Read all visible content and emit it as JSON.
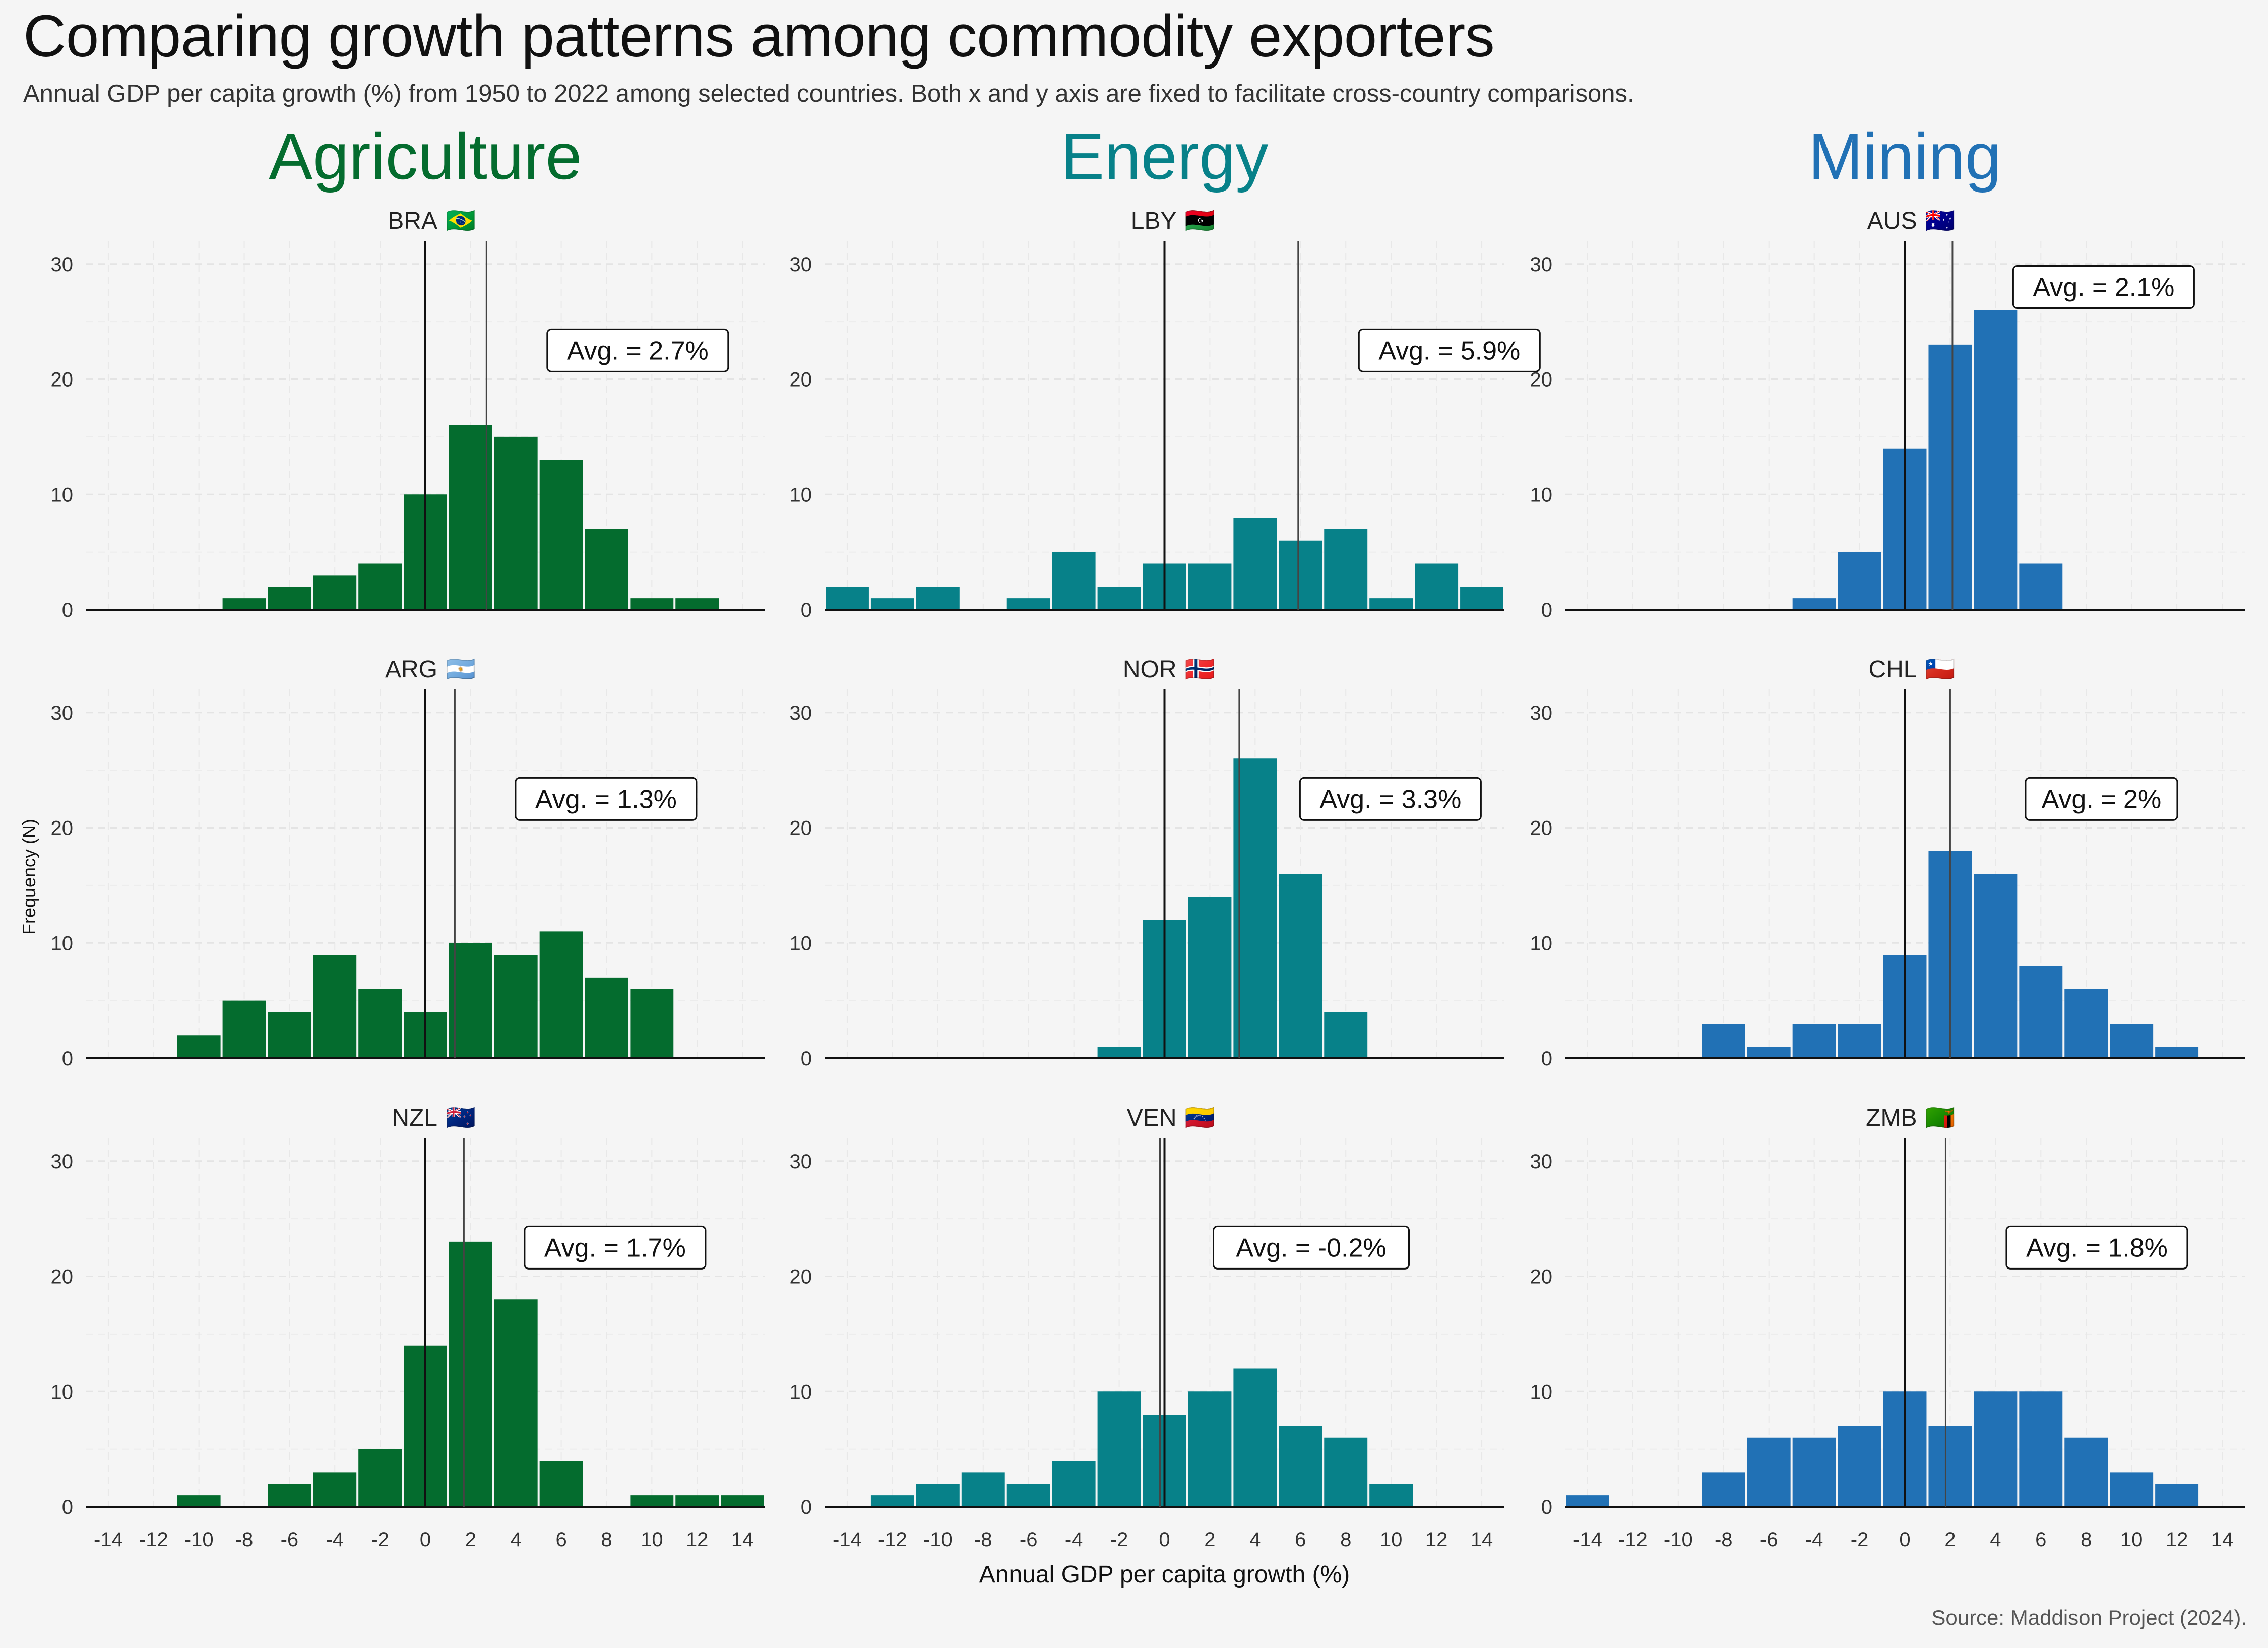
{
  "title": "Comparing growth patterns among commodity exporters",
  "subtitle": "Annual GDP per capita growth (%) from 1950 to 2022 among selected countries. Both x and y axis are fixed to facilitate cross-country comparisons.",
  "source": "Source: Maddison Project (2024).",
  "chart_data": {
    "type": "bar",
    "xlabel": "Annual GDP per capita growth (%)",
    "ylabel": "Frequency (N)",
    "xlim": [
      -15,
      15
    ],
    "ylim": [
      0,
      32
    ],
    "xticks": [
      "-14",
      "-12",
      "-10",
      "-8",
      "-6",
      "-4",
      "-2",
      "0",
      "2",
      "4",
      "6",
      "8",
      "10",
      "12",
      "14"
    ],
    "yticks": [
      "0",
      "10",
      "20",
      "30"
    ],
    "bin_centers": [
      -14,
      -12,
      -10,
      -8,
      -6,
      -4,
      -2,
      0,
      2,
      4,
      6,
      8,
      10,
      12,
      14
    ],
    "categories": [
      {
        "name": "Agriculture",
        "color": "#046c2e"
      },
      {
        "name": "Energy",
        "color": "#078189"
      },
      {
        "name": "Mining",
        "color": "#2171b5"
      }
    ],
    "panels": [
      {
        "country": "BRA",
        "flag": "🇧🇷",
        "category": "Agriculture",
        "avg": 2.7,
        "avg_label": "Avg. = 2.7%",
        "values": [
          0,
          0,
          0,
          1,
          2,
          3,
          4,
          10,
          16,
          15,
          13,
          7,
          1,
          1,
          0
        ]
      },
      {
        "country": "LBY",
        "flag": "🇱🇾",
        "category": "Energy",
        "avg": 5.9,
        "avg_label": "Avg. = 5.9%",
        "values": [
          2,
          1,
          2,
          0,
          1,
          5,
          2,
          4,
          4,
          8,
          6,
          7,
          1,
          4,
          2
        ]
      },
      {
        "country": "AUS",
        "flag": "🇦🇺",
        "category": "Mining",
        "avg": 2.1,
        "avg_label": "Avg. = 2.1%",
        "values": [
          0,
          0,
          0,
          0,
          0,
          1,
          5,
          14,
          23,
          26,
          4,
          0,
          0,
          0,
          0
        ]
      },
      {
        "country": "ARG",
        "flag": "🇦🇷",
        "category": "Agriculture",
        "avg": 1.3,
        "avg_label": "Avg. = 1.3%",
        "values": [
          0,
          0,
          2,
          5,
          4,
          9,
          6,
          4,
          10,
          9,
          11,
          7,
          6,
          0,
          0
        ]
      },
      {
        "country": "NOR",
        "flag": "🇳🇴",
        "category": "Energy",
        "avg": 3.3,
        "avg_label": "Avg. = 3.3%",
        "values": [
          0,
          0,
          0,
          0,
          0,
          0,
          1,
          12,
          14,
          26,
          16,
          4,
          0,
          0,
          0
        ]
      },
      {
        "country": "CHL",
        "flag": "🇨🇱",
        "category": "Mining",
        "avg": 2.0,
        "avg_label": "Avg. = 2%",
        "values": [
          0,
          0,
          0,
          3,
          1,
          3,
          3,
          9,
          18,
          16,
          8,
          6,
          3,
          1,
          0
        ]
      },
      {
        "country": "NZL",
        "flag": "🇳🇿",
        "category": "Agriculture",
        "avg": 1.7,
        "avg_label": "Avg. = 1.7%",
        "values": [
          0,
          0,
          1,
          0,
          2,
          3,
          5,
          14,
          23,
          18,
          4,
          0,
          1,
          1,
          1
        ]
      },
      {
        "country": "VEN",
        "flag": "🇻🇪",
        "category": "Energy",
        "avg": -0.2,
        "avg_label": "Avg. = -0.2%",
        "values": [
          0,
          1,
          2,
          3,
          2,
          4,
          10,
          8,
          10,
          12,
          7,
          6,
          2,
          0,
          0
        ]
      },
      {
        "country": "ZMB",
        "flag": "🇿🇲",
        "category": "Mining",
        "avg": 1.8,
        "avg_label": "Avg. = 1.8%",
        "values": [
          1,
          0,
          0,
          3,
          6,
          6,
          7,
          10,
          7,
          10,
          10,
          6,
          3,
          2,
          0
        ]
      }
    ]
  }
}
